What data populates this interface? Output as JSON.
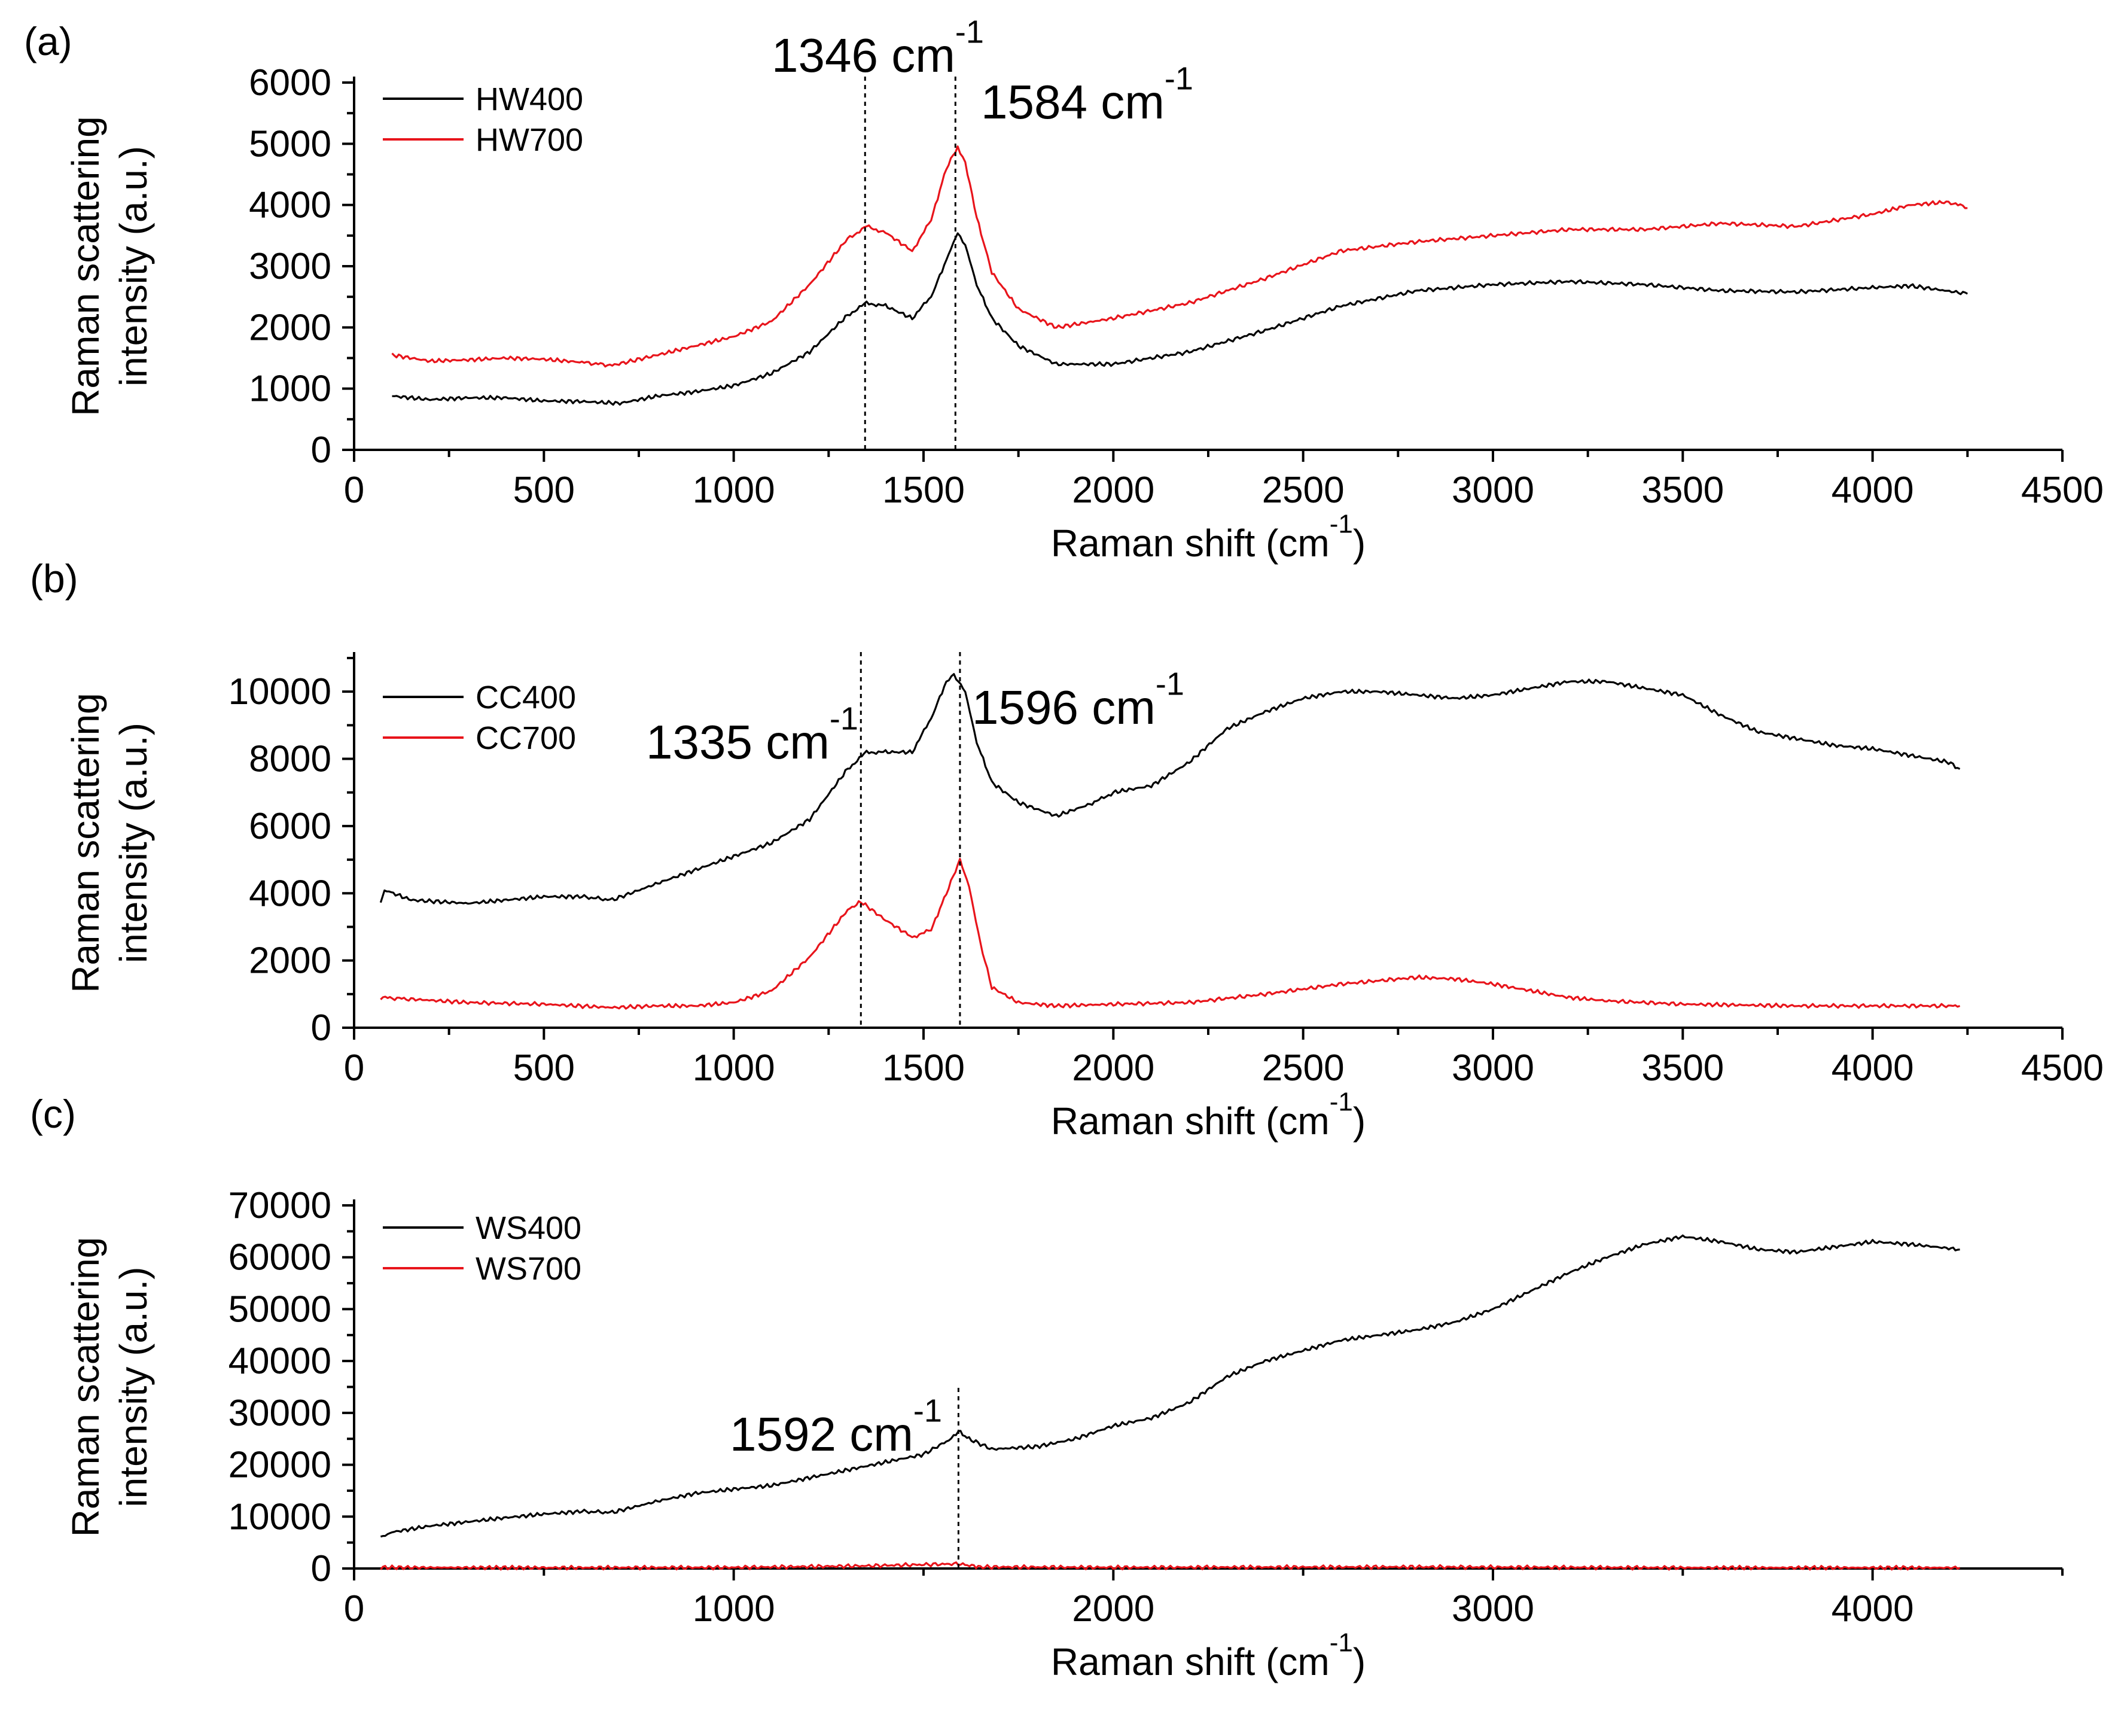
{
  "figure": {
    "type": "multi-panel Raman spectra"
  },
  "colors": {
    "black_series": "#000000",
    "red_series": "#e8141b"
  },
  "chart_data": [
    {
      "type": "line",
      "panel_label": "(a)",
      "xlabel": "Raman shift (cm",
      "xlabel_sup": "-1",
      "xlabel_end": ")",
      "ylabel_line1": "Raman scattering",
      "ylabel_line2": "intensity (a.u.)",
      "xlim": [
        0,
        4500
      ],
      "ylim": [
        0,
        6000
      ],
      "xticks": [
        0,
        500,
        1000,
        1500,
        2000,
        2500,
        3000,
        3500,
        4000,
        4500
      ],
      "yticks": [
        0,
        1000,
        2000,
        3000,
        4000,
        5000,
        6000
      ],
      "peaks": [
        {
          "x": 1346,
          "label": "1346 cm",
          "sup": "-1"
        },
        {
          "x": 1584,
          "label": "1584 cm",
          "sup": "-1"
        }
      ],
      "series": [
        {
          "name": "HW400",
          "color": "#000000",
          "points": [
            [
              100,
              880
            ],
            [
              200,
              820
            ],
            [
              300,
              850
            ],
            [
              400,
              850
            ],
            [
              500,
              800
            ],
            [
              600,
              790
            ],
            [
              700,
              760
            ],
            [
              800,
              880
            ],
            [
              900,
              950
            ],
            [
              1000,
              1050
            ],
            [
              1100,
              1250
            ],
            [
              1200,
              1600
            ],
            [
              1300,
              2200
            ],
            [
              1350,
              2400
            ],
            [
              1400,
              2350
            ],
            [
              1470,
              2150
            ],
            [
              1520,
              2500
            ],
            [
              1560,
              3100
            ],
            [
              1590,
              3550
            ],
            [
              1610,
              3350
            ],
            [
              1640,
              2700
            ],
            [
              1680,
              2150
            ],
            [
              1750,
              1700
            ],
            [
              1850,
              1400
            ],
            [
              2000,
              1400
            ],
            [
              2200,
              1600
            ],
            [
              2400,
              1950
            ],
            [
              2600,
              2350
            ],
            [
              2800,
              2600
            ],
            [
              3000,
              2700
            ],
            [
              3200,
              2750
            ],
            [
              3400,
              2700
            ],
            [
              3600,
              2600
            ],
            [
              3800,
              2580
            ],
            [
              4000,
              2650
            ],
            [
              4100,
              2680
            ],
            [
              4250,
              2550
            ]
          ]
        },
        {
          "name": "HW700",
          "color": "#e8141b",
          "points": [
            [
              100,
              1550
            ],
            [
              200,
              1450
            ],
            [
              300,
              1470
            ],
            [
              400,
              1500
            ],
            [
              500,
              1480
            ],
            [
              600,
              1430
            ],
            [
              680,
              1380
            ],
            [
              800,
              1550
            ],
            [
              900,
              1700
            ],
            [
              1000,
              1850
            ],
            [
              1100,
              2100
            ],
            [
              1200,
              2700
            ],
            [
              1300,
              3450
            ],
            [
              1350,
              3650
            ],
            [
              1400,
              3550
            ],
            [
              1470,
              3250
            ],
            [
              1520,
              3750
            ],
            [
              1560,
              4600
            ],
            [
              1590,
              4950
            ],
            [
              1610,
              4700
            ],
            [
              1640,
              3800
            ],
            [
              1680,
              2900
            ],
            [
              1750,
              2300
            ],
            [
              1850,
              2000
            ],
            [
              2000,
              2150
            ],
            [
              2200,
              2400
            ],
            [
              2400,
              2800
            ],
            [
              2600,
              3250
            ],
            [
              2800,
              3400
            ],
            [
              3000,
              3500
            ],
            [
              3200,
              3600
            ],
            [
              3400,
              3600
            ],
            [
              3600,
              3700
            ],
            [
              3800,
              3650
            ],
            [
              4000,
              3850
            ],
            [
              4100,
              4000
            ],
            [
              4200,
              4050
            ],
            [
              4250,
              3950
            ]
          ]
        }
      ]
    },
    {
      "type": "line",
      "panel_label": "(b)",
      "xlabel": "Raman shift (cm",
      "xlabel_sup": "-1",
      "xlabel_end": ")",
      "ylabel_line1": "Raman scattering",
      "ylabel_line2": "intensity (a.u.)",
      "xlim": [
        0,
        4500
      ],
      "ylim": [
        0,
        11000
      ],
      "xticks": [
        0,
        500,
        1000,
        1500,
        2000,
        2500,
        3000,
        3500,
        4000,
        4500
      ],
      "yticks": [
        0,
        2000,
        4000,
        6000,
        8000,
        10000
      ],
      "peaks": [
        {
          "x": 1335,
          "label": "1335 cm",
          "sup": "-1"
        },
        {
          "x": 1596,
          "label": "1596 cm",
          "sup": "-1"
        }
      ],
      "series": [
        {
          "name": "CC400",
          "color": "#000000",
          "points": [
            [
              70,
              3700
            ],
            [
              80,
              4100
            ],
            [
              150,
              3800
            ],
            [
              300,
              3700
            ],
            [
              400,
              3800
            ],
            [
              500,
              3900
            ],
            [
              600,
              3900
            ],
            [
              680,
              3800
            ],
            [
              800,
              4300
            ],
            [
              900,
              4700
            ],
            [
              1000,
              5100
            ],
            [
              1100,
              5500
            ],
            [
              1200,
              6200
            ],
            [
              1300,
              7700
            ],
            [
              1350,
              8200
            ],
            [
              1400,
              8200
            ],
            [
              1470,
              8200
            ],
            [
              1520,
              9200
            ],
            [
              1560,
              10300
            ],
            [
              1580,
              10500
            ],
            [
              1610,
              10000
            ],
            [
              1640,
              8500
            ],
            [
              1680,
              7300
            ],
            [
              1750,
              6700
            ],
            [
              1850,
              6300
            ],
            [
              1950,
              6700
            ],
            [
              2000,
              7000
            ],
            [
              2100,
              7200
            ],
            [
              2200,
              7900
            ],
            [
              2300,
              8900
            ],
            [
              2400,
              9400
            ],
            [
              2500,
              9800
            ],
            [
              2600,
              10000
            ],
            [
              2700,
              10000
            ],
            [
              2800,
              9900
            ],
            [
              2900,
              9800
            ],
            [
              3000,
              9900
            ],
            [
              3100,
              10100
            ],
            [
              3200,
              10300
            ],
            [
              3300,
              10300
            ],
            [
              3400,
              10100
            ],
            [
              3500,
              9900
            ],
            [
              3600,
              9300
            ],
            [
              3700,
              8800
            ],
            [
              3800,
              8600
            ],
            [
              3900,
              8400
            ],
            [
              4000,
              8300
            ],
            [
              4100,
              8100
            ],
            [
              4200,
              7900
            ],
            [
              4230,
              7700
            ]
          ]
        },
        {
          "name": "CC700",
          "color": "#e8141b",
          "points": [
            [
              70,
              900
            ],
            [
              150,
              850
            ],
            [
              300,
              750
            ],
            [
              500,
              700
            ],
            [
              680,
              600
            ],
            [
              800,
              650
            ],
            [
              900,
              650
            ],
            [
              1000,
              750
            ],
            [
              1100,
              1100
            ],
            [
              1200,
              2100
            ],
            [
              1300,
              3500
            ],
            [
              1335,
              3750
            ],
            [
              1400,
              3200
            ],
            [
              1470,
              2700
            ],
            [
              1520,
              2900
            ],
            [
              1560,
              4000
            ],
            [
              1596,
              5000
            ],
            [
              1620,
              4200
            ],
            [
              1650,
              2500
            ],
            [
              1680,
              1200
            ],
            [
              1750,
              750
            ],
            [
              1850,
              650
            ],
            [
              2000,
              700
            ],
            [
              2200,
              750
            ],
            [
              2400,
              1000
            ],
            [
              2600,
              1300
            ],
            [
              2800,
              1500
            ],
            [
              2900,
              1450
            ],
            [
              3000,
              1300
            ],
            [
              3100,
              1100
            ],
            [
              3200,
              900
            ],
            [
              3300,
              800
            ],
            [
              3500,
              700
            ],
            [
              3800,
              650
            ],
            [
              4000,
              650
            ],
            [
              4230,
              650
            ]
          ]
        }
      ]
    },
    {
      "type": "line",
      "panel_label": "(c)",
      "xlabel": "Raman shift (cm",
      "xlabel_sup": "-1",
      "xlabel_end": ")",
      "ylabel_line1": "Raman scattering",
      "ylabel_line2": "intensity (a.u.)",
      "xlim": [
        0,
        4500
      ],
      "ylim": [
        0,
        70000
      ],
      "xticks": [
        0,
        1000,
        2000,
        3000,
        4000
      ],
      "yticks": [
        0,
        10000,
        20000,
        30000,
        40000,
        50000,
        60000,
        70000
      ],
      "peaks": [
        {
          "x": 1592,
          "label": "1592 cm",
          "sup": "-1"
        }
      ],
      "series": [
        {
          "name": "WS400",
          "color": "#000000",
          "points": [
            [
              70,
              6000
            ],
            [
              100,
              7000
            ],
            [
              200,
              8200
            ],
            [
              300,
              9000
            ],
            [
              400,
              9800
            ],
            [
              500,
              10500
            ],
            [
              600,
              11000
            ],
            [
              680,
              10800
            ],
            [
              800,
              13000
            ],
            [
              900,
              14500
            ],
            [
              1000,
              15300
            ],
            [
              1100,
              16000
            ],
            [
              1200,
              17500
            ],
            [
              1300,
              19000
            ],
            [
              1400,
              20500
            ],
            [
              1500,
              22000
            ],
            [
              1560,
              24500
            ],
            [
              1592,
              26500
            ],
            [
              1620,
              25000
            ],
            [
              1680,
              23000
            ],
            [
              1800,
              23500
            ],
            [
              1900,
              25000
            ],
            [
              2000,
              27500
            ],
            [
              2100,
              29000
            ],
            [
              2200,
              32000
            ],
            [
              2300,
              37000
            ],
            [
              2400,
              40000
            ],
            [
              2500,
              42000
            ],
            [
              2600,
              44000
            ],
            [
              2700,
              45000
            ],
            [
              2800,
              46000
            ],
            [
              2900,
              47500
            ],
            [
              3000,
              50000
            ],
            [
              3100,
              53500
            ],
            [
              3200,
              57000
            ],
            [
              3300,
              60000
            ],
            [
              3400,
              62500
            ],
            [
              3500,
              64000
            ],
            [
              3600,
              63000
            ],
            [
              3700,
              61500
            ],
            [
              3800,
              61000
            ],
            [
              3900,
              62000
            ],
            [
              4000,
              63000
            ],
            [
              4100,
              62500
            ],
            [
              4230,
              61500
            ]
          ]
        },
        {
          "name": "WS700",
          "color": "#e8141b",
          "points": [
            [
              70,
              200
            ],
            [
              500,
              150
            ],
            [
              1000,
              200
            ],
            [
              1350,
              500
            ],
            [
              1592,
              900
            ],
            [
              1650,
              300
            ],
            [
              2000,
              200
            ],
            [
              2800,
              300
            ],
            [
              3000,
              250
            ],
            [
              3500,
              150
            ],
            [
              4230,
              150
            ]
          ]
        }
      ]
    }
  ]
}
